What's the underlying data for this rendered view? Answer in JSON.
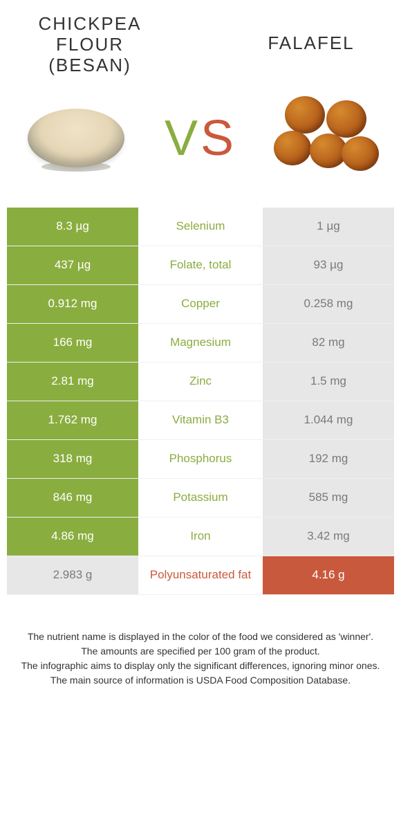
{
  "left_food": {
    "title_line1": "Chickpea",
    "title_line2": "flour",
    "title_line3": "(besan)",
    "color": "#8aad3f"
  },
  "right_food": {
    "title": "Falafel",
    "color": "#c9593d"
  },
  "vs": {
    "v": "V",
    "s": "S"
  },
  "loss_bg": "#e7e7e7",
  "loss_text": "#7a7a7a",
  "rows": [
    {
      "nutrient": "Selenium",
      "left": "8.3 µg",
      "right": "1 µg",
      "winner": "left"
    },
    {
      "nutrient": "Folate, total",
      "left": "437 µg",
      "right": "93 µg",
      "winner": "left"
    },
    {
      "nutrient": "Copper",
      "left": "0.912 mg",
      "right": "0.258 mg",
      "winner": "left"
    },
    {
      "nutrient": "Magnesium",
      "left": "166 mg",
      "right": "82 mg",
      "winner": "left"
    },
    {
      "nutrient": "Zinc",
      "left": "2.81 mg",
      "right": "1.5 mg",
      "winner": "left"
    },
    {
      "nutrient": "Vitamin B3",
      "left": "1.762 mg",
      "right": "1.044 mg",
      "winner": "left"
    },
    {
      "nutrient": "Phosphorus",
      "left": "318 mg",
      "right": "192 mg",
      "winner": "left"
    },
    {
      "nutrient": "Potassium",
      "left": "846 mg",
      "right": "585 mg",
      "winner": "left"
    },
    {
      "nutrient": "Iron",
      "left": "4.86 mg",
      "right": "3.42 mg",
      "winner": "left"
    },
    {
      "nutrient": "Polyunsaturated fat",
      "left": "2.983 g",
      "right": "4.16 g",
      "winner": "right"
    }
  ],
  "footer": [
    "The nutrient name is displayed in the color of the food we considered as 'winner'.",
    "The amounts are specified per 100 gram of the product.",
    "The infographic aims to display only the significant differences, ignoring minor ones.",
    "The main source of information is USDA Food Composition Database."
  ]
}
